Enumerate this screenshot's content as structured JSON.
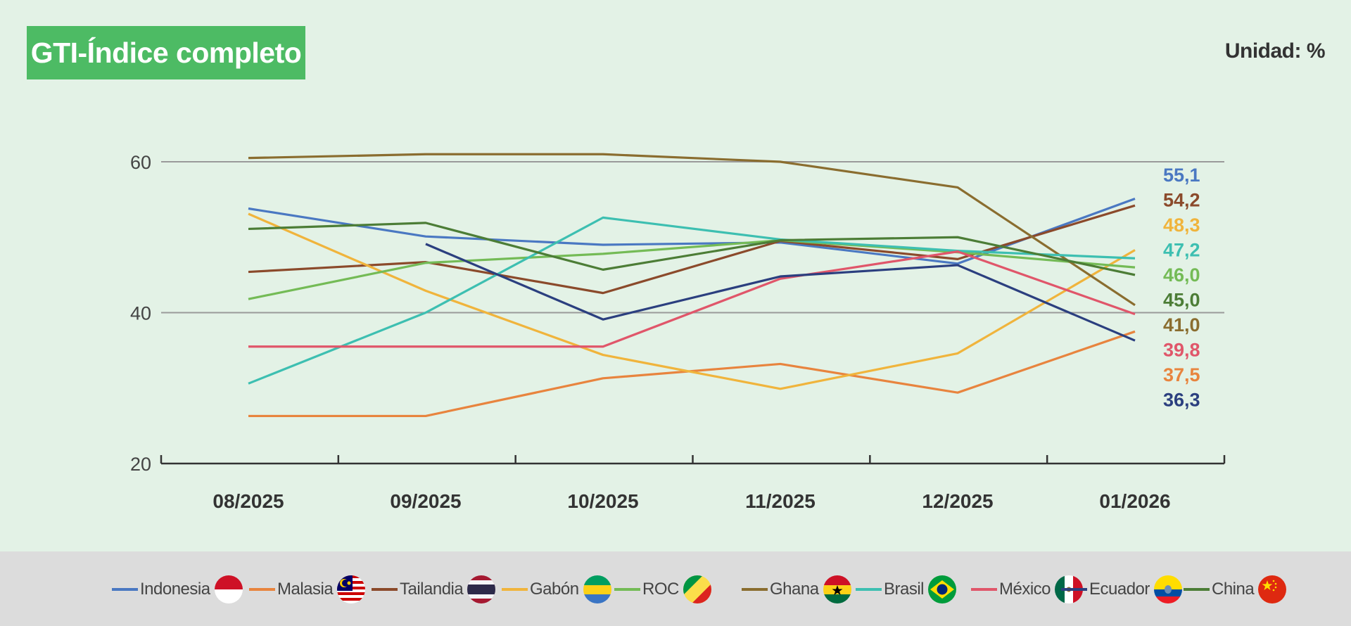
{
  "header": {
    "title": "GTI-Índice completo",
    "unit": "Unidad: %"
  },
  "chart_data": {
    "type": "line",
    "title": "GTI-Índice completo",
    "categories": [
      "08/2025",
      "09/2025",
      "10/2025",
      "11/2025",
      "12/2025",
      "01/2026"
    ],
    "ylim": [
      20,
      60
    ],
    "yticks": [
      20,
      40,
      60
    ],
    "grid": true,
    "legend_position": "bottom",
    "series": [
      {
        "name": "Indonesia",
        "color": "#4a78c2",
        "values": [
          53.8,
          50.1,
          49.0,
          49.3,
          46.5,
          55.1
        ],
        "end_label": "55,1",
        "flag": "indonesia-flag-icon"
      },
      {
        "name": "Malasia",
        "color": "#e8843e",
        "values": [
          26.3,
          26.3,
          31.3,
          33.2,
          29.4,
          37.5
        ],
        "end_label": "37,5",
        "flag": "malaysia-flag-icon"
      },
      {
        "name": "Tailandia",
        "color": "#8b4a2b",
        "values": [
          45.4,
          46.7,
          42.6,
          49.5,
          47.1,
          54.2
        ],
        "end_label": "54,2",
        "flag": "thailand-flag-icon"
      },
      {
        "name": "Gabón",
        "color": "#f0b43c",
        "values": [
          53.1,
          42.9,
          34.4,
          29.9,
          34.6,
          48.3
        ],
        "end_label": "48,3",
        "flag": "gabon-flag-icon"
      },
      {
        "name": "ROC",
        "color": "#74bb56",
        "values": [
          41.8,
          46.6,
          47.8,
          49.6,
          48.0,
          46.0
        ],
        "end_label": "46,0",
        "flag": "congo-flag-icon"
      },
      {
        "name": "Ghana",
        "color": "#8a6d2f",
        "values": [
          60.5,
          61.0,
          61.0,
          60.0,
          56.6,
          41.0
        ],
        "end_label": "41,0",
        "flag": "ghana-flag-icon"
      },
      {
        "name": "Brasil",
        "color": "#3dbfb1",
        "values": [
          30.6,
          40.0,
          52.6,
          49.7,
          48.2,
          47.2
        ],
        "end_label": "47,2",
        "flag": "brazil-flag-icon"
      },
      {
        "name": "México",
        "color": "#e0566a",
        "values": [
          35.5,
          35.5,
          35.5,
          44.5,
          48.1,
          39.8
        ],
        "end_label": "39,8",
        "flag": "mexico-flag-icon"
      },
      {
        "name": "Ecuador",
        "color": "#2b3f7f",
        "values": [
          null,
          49.1,
          39.1,
          44.8,
          46.3,
          36.3
        ],
        "end_label": "36,3",
        "flag": "ecuador-flag-icon"
      },
      {
        "name": "China",
        "color": "#4c7d36",
        "values": [
          51.1,
          51.9,
          45.7,
          49.6,
          50.0,
          45.0
        ],
        "end_label": "45,0",
        "flag": "china-flag-icon"
      }
    ],
    "end_labels_order": [
      "Indonesia",
      "Tailandia",
      "Gabón",
      "Brasil",
      "ROC",
      "China",
      "Ghana",
      "México",
      "Malasia",
      "Ecuador"
    ]
  }
}
